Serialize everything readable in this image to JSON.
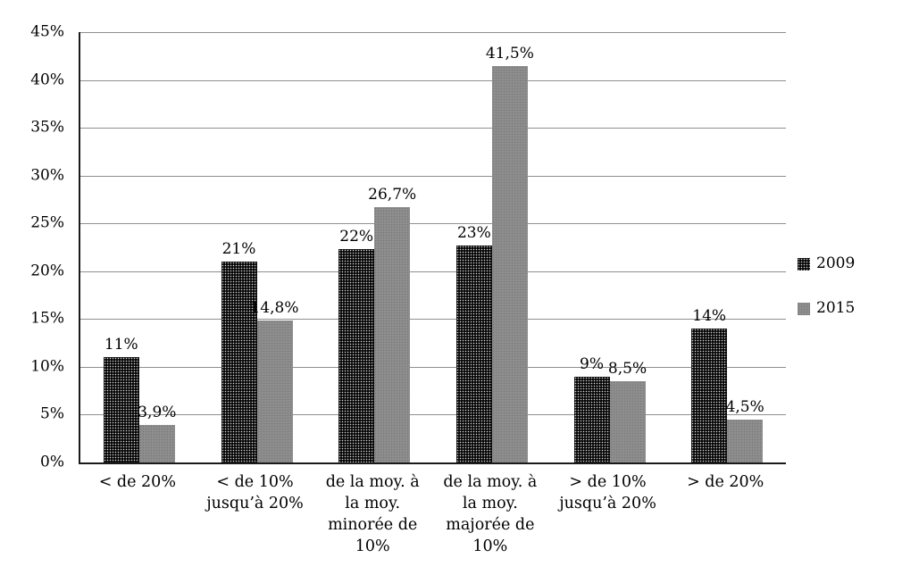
{
  "chart_data": {
    "type": "bar",
    "title": "",
    "xlabel": "",
    "ylabel": "",
    "ylim": [
      0,
      45
    ],
    "ytick_step": 5,
    "ytick_labels": [
      "0%",
      "5%",
      "10%",
      "15%",
      "20%",
      "25%",
      "30%",
      "35%",
      "40%",
      "45%"
    ],
    "grid": true,
    "legend_position": "right",
    "categories": [
      "< de 20%",
      "< de 10% jusqu’à 20%",
      "de la moy. à la moy. minorée de 10%",
      "de la moy. à la moy. majorée de 10%",
      "> de 10% jusqu’à 20%",
      "> de 20%"
    ],
    "series": [
      {
        "name": "2009",
        "values": [
          11,
          21,
          22.3,
          22.7,
          9,
          14
        ],
        "labels": [
          "11%",
          "21%",
          "22%",
          "23%",
          "9%",
          "14%"
        ],
        "color": "#060606",
        "pattern": "white-dots-on-black"
      },
      {
        "name": "2015",
        "values": [
          3.9,
          14.8,
          26.7,
          41.5,
          8.5,
          4.5
        ],
        "labels": [
          "3,9%",
          "14,8%",
          "26,7%",
          "41,5%",
          "8,5%",
          "4,5%"
        ],
        "color": "#8d8d8d",
        "pattern": "solid-gray"
      }
    ]
  }
}
